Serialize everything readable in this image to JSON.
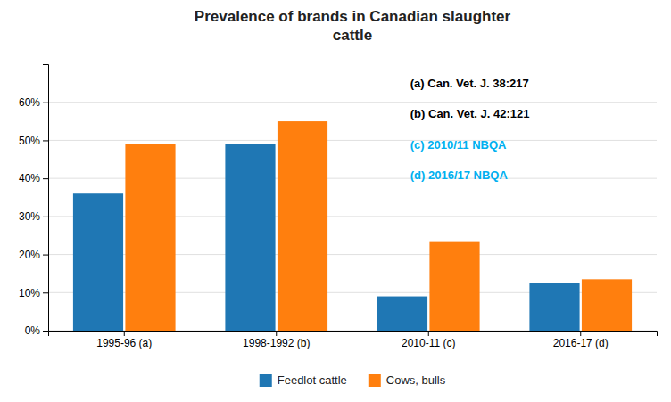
{
  "chart_data": {
    "type": "bar",
    "title": "Prevalence of brands in Canadian slaughter\ncattle",
    "categories": [
      "1995-96 (a)",
      "1998-1992 (b)",
      "2010-11 (c)",
      "2016-17 (d)"
    ],
    "series": [
      {
        "name": "Feedlot cattle",
        "values": [
          0.36,
          0.49,
          0.09,
          0.125
        ]
      },
      {
        "name": "Cows, bulls",
        "values": [
          0.49,
          0.55,
          0.235,
          0.135
        ]
      }
    ],
    "ylim": [
      0,
      0.7
    ],
    "yticks": [
      {
        "value": 0.0,
        "label": "0%"
      },
      {
        "value": 0.1,
        "label": "10%"
      },
      {
        "value": 0.2,
        "label": "20%"
      },
      {
        "value": 0.3,
        "label": "30%"
      },
      {
        "value": 0.4,
        "label": "40%"
      },
      {
        "value": 0.5,
        "label": "50%"
      },
      {
        "value": 0.6,
        "label": "60%"
      }
    ],
    "grid": true,
    "legend": "bottom",
    "annotations": [
      {
        "text": "(a) Can. Vet. J. 38:217",
        "color": "#000000"
      },
      {
        "text": "(b) Can. Vet. J. 42:121",
        "color": "#000000"
      },
      {
        "text": "(c) 2010/11 NBQA",
        "color": "#00b0f0"
      },
      {
        "text": "(d) 2016/17 NBQA",
        "color": "#00b0f0"
      }
    ]
  }
}
